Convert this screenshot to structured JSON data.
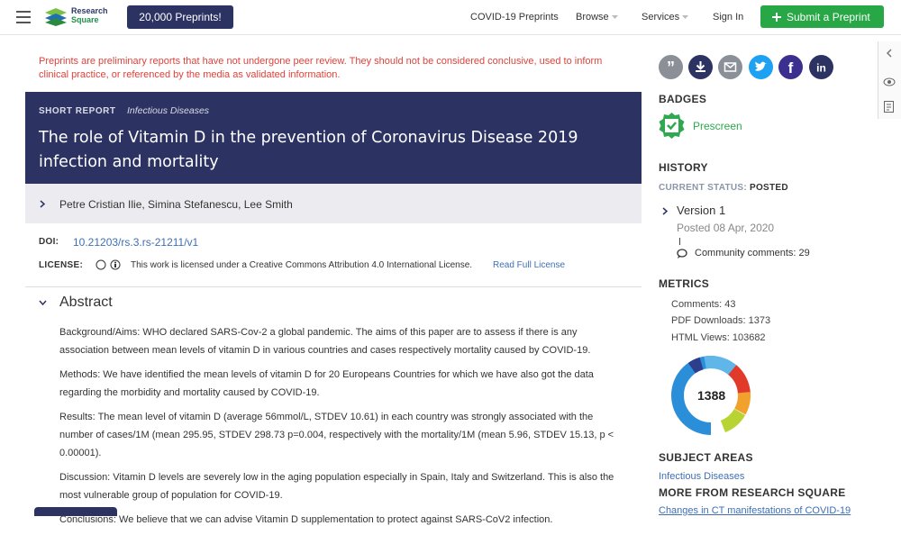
{
  "header": {
    "logo": [
      "Research",
      "Square"
    ],
    "promo": "20,000 Preprints!",
    "nav": [
      "COVID-19 Preprints",
      "Browse",
      "Services",
      "Sign In"
    ],
    "submit": "Submit a Preprint"
  },
  "notice": "Preprints are preliminary reports that have not undergone peer review. They should not be considered conclusive, used to inform clinical practice, or referenced by the media as validated information.",
  "article": {
    "kind": "SHORT REPORT",
    "subject": "Infectious Diseases",
    "title": "The role of Vitamin D in the prevention of Coronavirus Disease 2019 infection and mortality",
    "authors": "Petre Cristian Ilie, Simina Stefanescu, Lee Smith",
    "doi_label": "DOI:",
    "doi": "10.21203/rs.3.rs-21211/v1",
    "license_label": "LICENSE:",
    "license_text": "This work is licensed under a Creative Commons Attribution 4.0 International License.",
    "license_link": "Read Full License"
  },
  "abstract": {
    "heading": "Abstract",
    "paragraphs": [
      "Background/Aims: WHO declared SARS-Cov-2 a global pandemic. The aims of this paper are to assess if there is any association between mean levels of vitamin D in various countries and cases respectively mortality caused by COVID-19.",
      "Methods: We have identified the mean levels of vitamin D for 20 Europeans Countries for which we have also got the data regarding the morbidity and mortality caused by COVID-19.",
      "Results: The mean level of vitamin D (average 56mmol/L, STDEV 10.61) in each country was strongly associated with the number of cases/1M (mean 295.95, STDEV 298.73 p=0.004, respectively with the mortality/1M (mean 5.96, STDEV 15.13, p < 0.00001).",
      "Discussion: Vitamin D levels are severely low in the aging population especially in Spain, Italy and Switzerland. This is also the most vulnerable group of population for COVID-19.",
      "Conclusions: We believe that we can advise Vitamin D supplementation to protect against SARS-CoV2 infection."
    ]
  },
  "sidebar": {
    "badges_heading": "BADGES",
    "badge": "Prescreen",
    "history_heading": "HISTORY",
    "status_label": "CURRENT STATUS:",
    "status": "POSTED",
    "version": "Version 1",
    "posted": "Posted 08 Apr, 2020",
    "community": "Community comments: 29",
    "metrics_heading": "METRICS",
    "metrics": [
      "Comments: 43",
      "PDF Downloads: 1373",
      "HTML Views: 103682"
    ],
    "altmetric": "1388",
    "subject_heading": "SUBJECT AREAS",
    "subject": "Infectious Diseases",
    "more_heading": "MORE FROM RESEARCH SQUARE",
    "more_first": "Changes in CT manifestations of COVID-19"
  }
}
